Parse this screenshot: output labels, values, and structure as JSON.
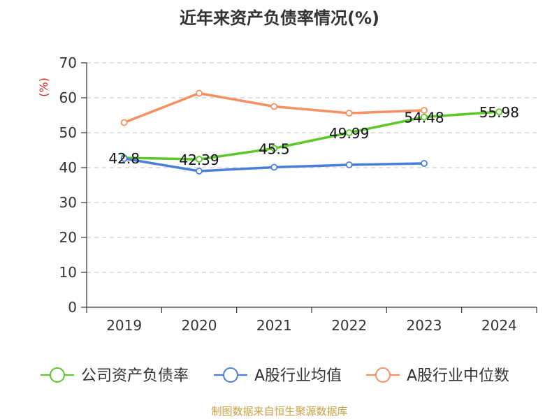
{
  "chart_data": {
    "type": "line",
    "title": "近年来资产负债率情况(%)",
    "ylabel": "(%)",
    "xlabel": "",
    "categories": [
      "2019",
      "2020",
      "2021",
      "2022",
      "2023",
      "2024"
    ],
    "ylim": [
      0,
      70
    ],
    "yticks": [
      0,
      10,
      20,
      30,
      40,
      50,
      60,
      70
    ],
    "grid": true,
    "legend_position": "bottom",
    "series": [
      {
        "name": "公司资产负债率",
        "color": "#5cc82a",
        "values": [
          42.8,
          42.39,
          45.5,
          49.99,
          54.48,
          55.98
        ],
        "labels": [
          "42.8",
          "42.39",
          "45.5",
          "49.99",
          "54.48",
          "55.98"
        ]
      },
      {
        "name": "A股行业均值",
        "color": "#4a7fd8",
        "values": [
          42.6,
          39.0,
          40.1,
          40.8,
          41.2,
          null
        ]
      },
      {
        "name": "A股行业中位数",
        "color": "#f59060",
        "values": [
          52.9,
          61.3,
          57.5,
          55.6,
          56.4,
          null
        ]
      }
    ],
    "source": "制图数据来自恒生聚源数据库"
  }
}
